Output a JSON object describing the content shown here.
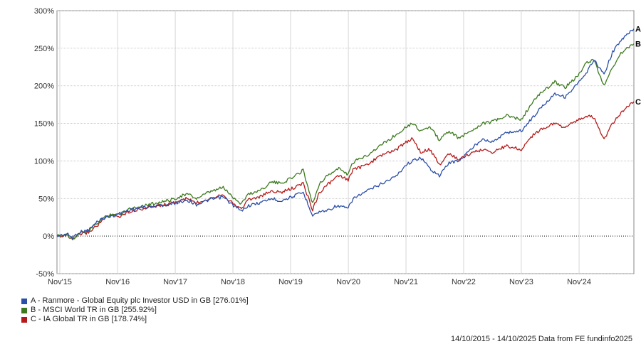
{
  "chart_data": {
    "type": "line",
    "title": "",
    "xlabel": "",
    "ylabel": "",
    "ylim": [
      -50,
      300
    ],
    "y_ticks": [
      -50,
      0,
      50,
      100,
      150,
      200,
      250,
      300
    ],
    "y_tick_labels": [
      "-50%",
      "0%",
      "50%",
      "100%",
      "150%",
      "200%",
      "250%",
      "300%"
    ],
    "x_range": [
      "2015-10-14",
      "2025-10-14"
    ],
    "x_ticks": [
      "2015-11-01",
      "2016-11-01",
      "2017-11-01",
      "2018-11-01",
      "2019-11-01",
      "2020-11-01",
      "2021-11-01",
      "2022-11-01",
      "2023-11-01",
      "2024-11-01"
    ],
    "x_tick_labels": [
      "Nov'15",
      "Nov'16",
      "Nov'17",
      "Nov'18",
      "Nov'19",
      "Nov'20",
      "Nov'21",
      "Nov'22",
      "Nov'23",
      "Nov'24"
    ],
    "grid": true,
    "zero_line": "dotted",
    "series": [
      {
        "name": "A - Ranmore - Global Equity plc Investor USD in GB [276.01%]",
        "end_label": "A",
        "color": "#2b4fa8",
        "points": [
          [
            "2015-10-14",
            0
          ],
          [
            "2015-12-15",
            3
          ],
          [
            "2016-01-20",
            -2
          ],
          [
            "2016-03-01",
            5
          ],
          [
            "2016-05-01",
            8
          ],
          [
            "2016-06-30",
            20
          ],
          [
            "2016-08-01",
            24
          ],
          [
            "2016-10-01",
            27
          ],
          [
            "2016-11-15",
            30
          ],
          [
            "2017-01-01",
            34
          ],
          [
            "2017-04-01",
            38
          ],
          [
            "2017-07-01",
            40
          ],
          [
            "2017-10-01",
            42
          ],
          [
            "2018-01-15",
            48
          ],
          [
            "2018-03-15",
            42
          ],
          [
            "2018-06-01",
            48
          ],
          [
            "2018-09-01",
            52
          ],
          [
            "2018-10-15",
            44
          ],
          [
            "2018-12-24",
            33
          ],
          [
            "2019-02-01",
            40
          ],
          [
            "2019-05-01",
            45
          ],
          [
            "2019-07-01",
            50
          ],
          [
            "2019-09-01",
            47
          ],
          [
            "2019-12-01",
            54
          ],
          [
            "2020-01-20",
            58
          ],
          [
            "2020-03-20",
            28
          ],
          [
            "2020-05-01",
            32
          ],
          [
            "2020-07-01",
            35
          ],
          [
            "2020-08-15",
            40
          ],
          [
            "2020-10-31",
            37
          ],
          [
            "2020-12-01",
            50
          ],
          [
            "2021-03-01",
            60
          ],
          [
            "2021-06-01",
            70
          ],
          [
            "2021-09-01",
            80
          ],
          [
            "2021-11-01",
            95
          ],
          [
            "2021-12-15",
            100
          ],
          [
            "2022-02-01",
            105
          ],
          [
            "2022-04-01",
            90
          ],
          [
            "2022-06-01",
            80
          ],
          [
            "2022-08-01",
            98
          ],
          [
            "2022-10-01",
            100
          ],
          [
            "2022-12-15",
            115
          ],
          [
            "2023-03-01",
            130
          ],
          [
            "2023-05-01",
            125
          ],
          [
            "2023-08-01",
            138
          ],
          [
            "2023-11-01",
            140
          ],
          [
            "2024-01-01",
            155
          ],
          [
            "2024-03-01",
            170
          ],
          [
            "2024-06-01,",
            190
          ],
          [
            "2024-08-05",
            185
          ],
          [
            "2024-11-01",
            205
          ],
          [
            "2024-12-15",
            215
          ],
          [
            "2025-02-01",
            235
          ],
          [
            "2025-04-08",
            215
          ],
          [
            "2025-06-01",
            245
          ],
          [
            "2025-08-01",
            262
          ],
          [
            "2025-10-14",
            276
          ]
        ]
      },
      {
        "name": "B - MSCI World TR in GB [255.92%]",
        "end_label": "B",
        "color": "#3c7a1e",
        "points": [
          [
            "2015-10-14",
            0
          ],
          [
            "2015-12-15",
            2
          ],
          [
            "2016-01-20",
            -4
          ],
          [
            "2016-03-01",
            3
          ],
          [
            "2016-05-01",
            7
          ],
          [
            "2016-06-30",
            18
          ],
          [
            "2016-08-01",
            24
          ],
          [
            "2016-10-01",
            30
          ],
          [
            "2016-11-15",
            28
          ],
          [
            "2017-01-01",
            36
          ],
          [
            "2017-04-01",
            40
          ],
          [
            "2017-07-01",
            44
          ],
          [
            "2017-10-01",
            48
          ],
          [
            "2018-01-15",
            56
          ],
          [
            "2018-03-15",
            50
          ],
          [
            "2018-06-01",
            58
          ],
          [
            "2018-09-01",
            65
          ],
          [
            "2018-10-15",
            55
          ],
          [
            "2018-12-24",
            43
          ],
          [
            "2019-02-01",
            55
          ],
          [
            "2019-05-01",
            62
          ],
          [
            "2019-07-01",
            72
          ],
          [
            "2019-09-01",
            70
          ],
          [
            "2019-12-01",
            80
          ],
          [
            "2020-01-20",
            88
          ],
          [
            "2020-03-20",
            43
          ],
          [
            "2020-05-01",
            70
          ],
          [
            "2020-07-01",
            82
          ],
          [
            "2020-09-01",
            90
          ],
          [
            "2020-10-31",
            82
          ],
          [
            "2020-12-01",
            98
          ],
          [
            "2021-03-01",
            108
          ],
          [
            "2021-06-01",
            122
          ],
          [
            "2021-09-01",
            135
          ],
          [
            "2021-11-01",
            146
          ],
          [
            "2021-12-15",
            150
          ],
          [
            "2022-02-01",
            140
          ],
          [
            "2022-04-01",
            145
          ],
          [
            "2022-06-01",
            128
          ],
          [
            "2022-08-01",
            140
          ],
          [
            "2022-10-01",
            130
          ],
          [
            "2022-12-15",
            140
          ],
          [
            "2023-03-01",
            150
          ],
          [
            "2023-05-01",
            152
          ],
          [
            "2023-08-01",
            160
          ],
          [
            "2023-11-01",
            155
          ],
          [
            "2024-01-01",
            175
          ],
          [
            "2024-03-01",
            190
          ],
          [
            "2024-06-01",
            205
          ],
          [
            "2024-08-05",
            198
          ],
          [
            "2024-11-01",
            215
          ],
          [
            "2024-12-15",
            230
          ],
          [
            "2025-02-01",
            235
          ],
          [
            "2025-04-08",
            200
          ],
          [
            "2025-06-01",
            225
          ],
          [
            "2025-08-01",
            245
          ],
          [
            "2025-10-14",
            256
          ]
        ]
      },
      {
        "name": "C - IA Global TR in GB [178.74%]",
        "end_label": "C",
        "color": "#b51a1a",
        "points": [
          [
            "2015-10-14",
            0
          ],
          [
            "2015-12-15",
            1
          ],
          [
            "2016-01-20",
            -5
          ],
          [
            "2016-03-01",
            2
          ],
          [
            "2016-05-01",
            5
          ],
          [
            "2016-06-30",
            15
          ],
          [
            "2016-08-01",
            22
          ],
          [
            "2016-10-01",
            28
          ],
          [
            "2016-11-15",
            26
          ],
          [
            "2017-01-01",
            32
          ],
          [
            "2017-04-01",
            36
          ],
          [
            "2017-07-01",
            40
          ],
          [
            "2017-10-01",
            43
          ],
          [
            "2018-01-15",
            50
          ],
          [
            "2018-03-15",
            44
          ],
          [
            "2018-06-01",
            50
          ],
          [
            "2018-09-01",
            56
          ],
          [
            "2018-10-15",
            46
          ],
          [
            "2018-12-24",
            36
          ],
          [
            "2019-02-01",
            48
          ],
          [
            "2019-05-01",
            53
          ],
          [
            "2019-07-01",
            60
          ],
          [
            "2019-09-01",
            58
          ],
          [
            "2019-12-01",
            65
          ],
          [
            "2020-01-20",
            70
          ],
          [
            "2020-03-20",
            35
          ],
          [
            "2020-05-01",
            58
          ],
          [
            "2020-07-01",
            70
          ],
          [
            "2020-09-01",
            80
          ],
          [
            "2020-10-31",
            75
          ],
          [
            "2020-12-01",
            88
          ],
          [
            "2021-03-01",
            95
          ],
          [
            "2021-06-01",
            108
          ],
          [
            "2021-09-01",
            115
          ],
          [
            "2021-11-01",
            125
          ],
          [
            "2021-12-15",
            130
          ],
          [
            "2022-02-01",
            112
          ],
          [
            "2022-04-01",
            115
          ],
          [
            "2022-06-01",
            95
          ],
          [
            "2022-08-01",
            110
          ],
          [
            "2022-10-01",
            102
          ],
          [
            "2022-12-15",
            110
          ],
          [
            "2023-03-01",
            115
          ],
          [
            "2023-05-01",
            112
          ],
          [
            "2023-08-01",
            120
          ],
          [
            "2023-11-01",
            115
          ],
          [
            "2024-01-01",
            132
          ],
          [
            "2024-03-01",
            142
          ],
          [
            "2024-06-01",
            150
          ],
          [
            "2024-08-05",
            145
          ],
          [
            "2024-11-01",
            155
          ],
          [
            "2024-12-15",
            160
          ],
          [
            "2025-02-01",
            158
          ],
          [
            "2025-04-08",
            128
          ],
          [
            "2025-06-01",
            150
          ],
          [
            "2025-08-01",
            165
          ],
          [
            "2025-10-14",
            179
          ]
        ]
      }
    ]
  },
  "legend": {
    "items": [
      {
        "label": "A - Ranmore - Global Equity plc Investor USD in GB [276.01%]",
        "color": "#2b4fa8"
      },
      {
        "label": "B - MSCI World TR in GB [255.92%]",
        "color": "#3c7a1e"
      },
      {
        "label": "C - IA Global TR in GB [178.74%]",
        "color": "#b51a1a"
      }
    ]
  },
  "footer": {
    "text": "14/10/2015 - 14/10/2025 Data from FE fundinfo2025"
  }
}
